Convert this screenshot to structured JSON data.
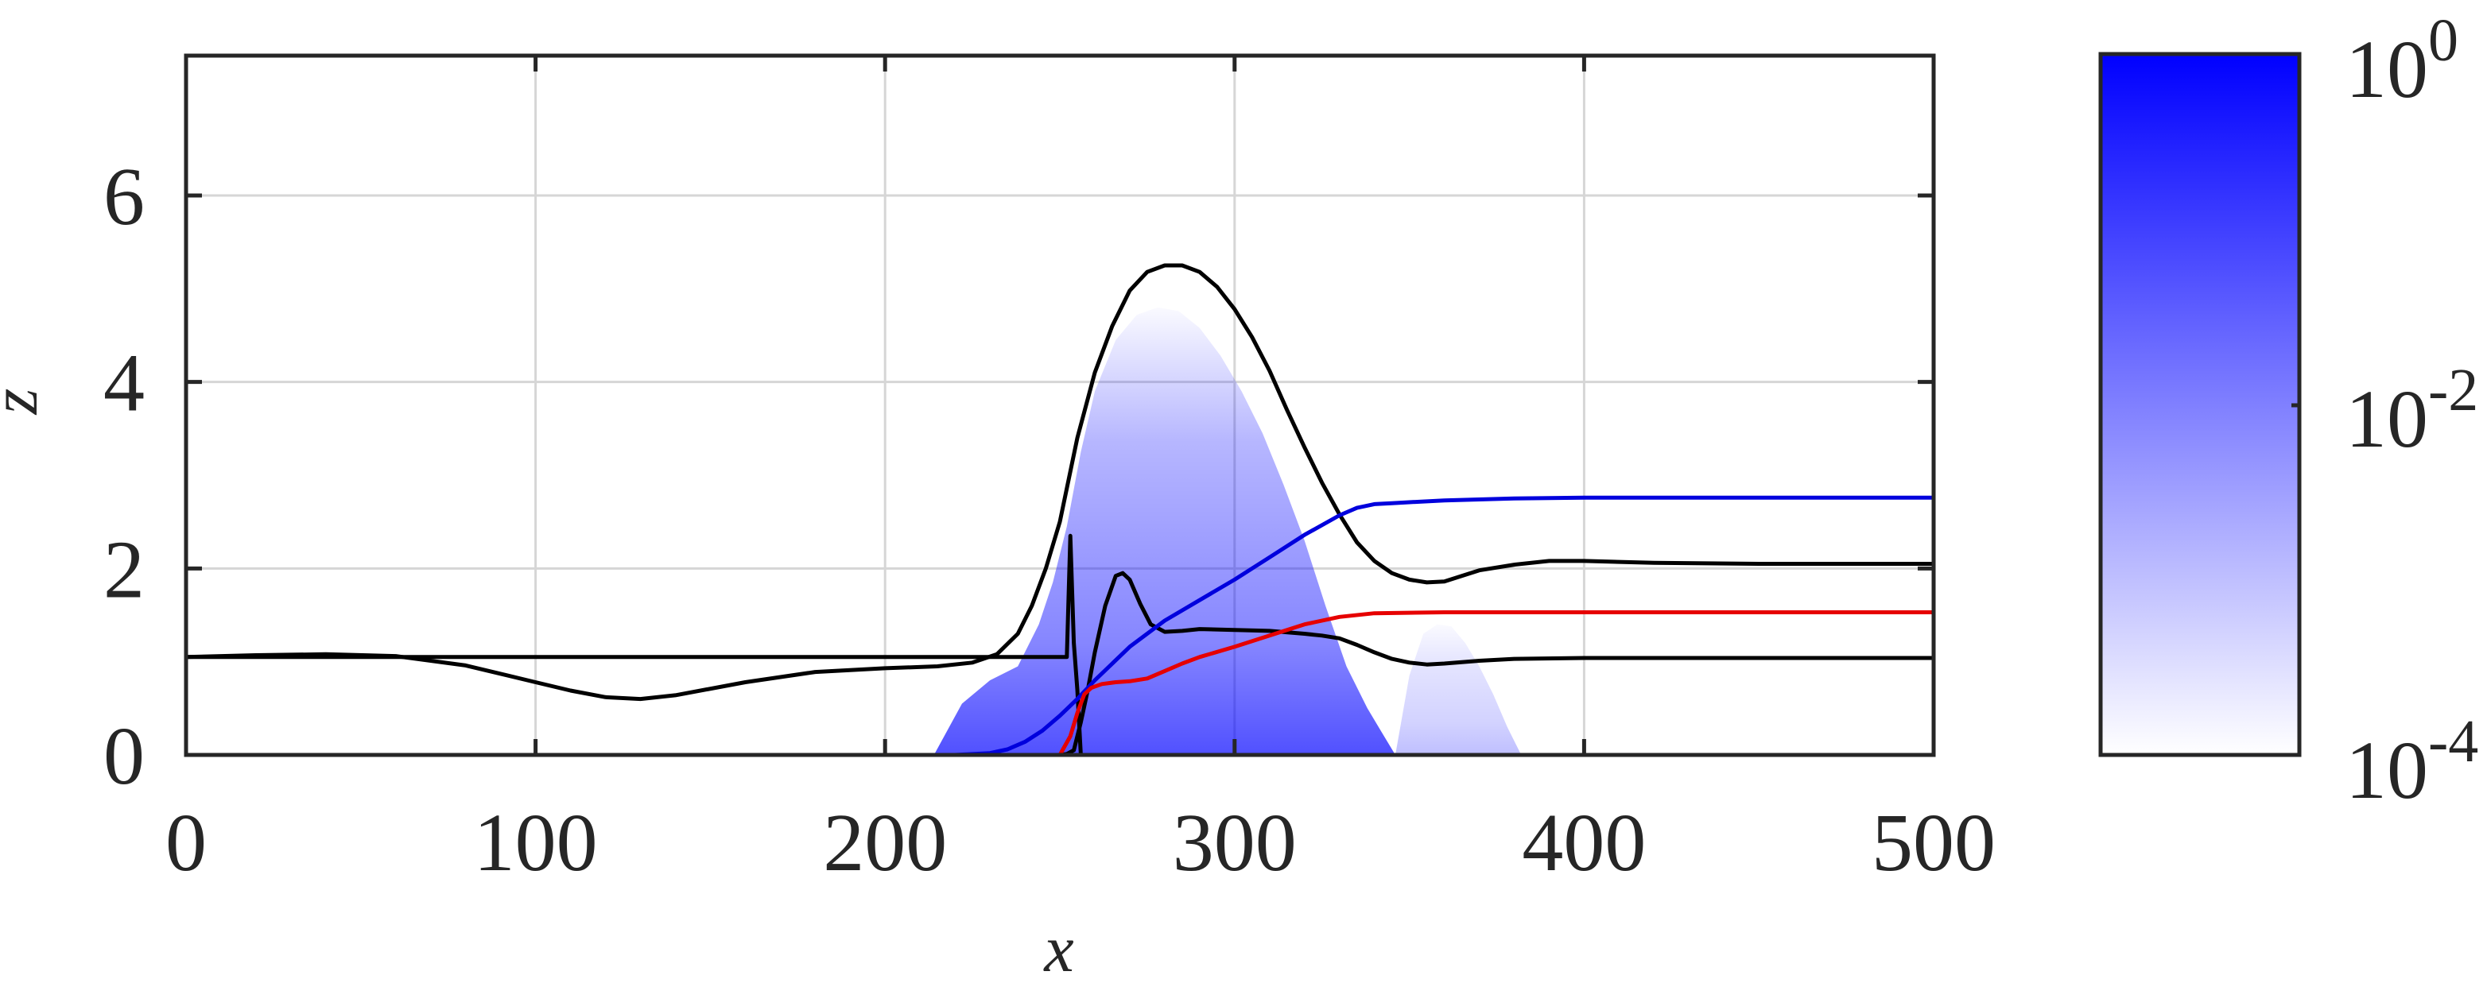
{
  "chart_data": {
    "type": "line",
    "title": "",
    "xlabel": "x",
    "ylabel": "z",
    "xlim": [
      0,
      500
    ],
    "ylim": [
      0,
      7.5
    ],
    "xticks": [
      "0",
      "100",
      "200",
      "300",
      "400",
      "500"
    ],
    "yticks": [
      "0",
      "2",
      "4",
      "6"
    ],
    "grid": true,
    "colors": {
      "upper_black": "#000000",
      "lower_black": "#000000",
      "blue": "#0000dd",
      "red": "#e60000",
      "field": "#0000ff",
      "grid": "#d6d6d6",
      "frame": "#262626"
    },
    "series": [
      {
        "key": "upper_black",
        "x": [
          0,
          20,
          40,
          60,
          80,
          100,
          110,
          120,
          130,
          140,
          160,
          180,
          200,
          215,
          225,
          232,
          238,
          242,
          246,
          250,
          255,
          260,
          265,
          270,
          275,
          280,
          285,
          290,
          295,
          300,
          305,
          310,
          315,
          320,
          325,
          330,
          335,
          340,
          345,
          350,
          355,
          360,
          365,
          370,
          380,
          390,
          400,
          420,
          450,
          480,
          500
        ],
        "y": [
          1.05,
          1.07,
          1.08,
          1.06,
          0.96,
          0.78,
          0.69,
          0.62,
          0.6,
          0.64,
          0.78,
          0.89,
          0.93,
          0.95,
          0.99,
          1.08,
          1.3,
          1.6,
          2.0,
          2.5,
          3.4,
          4.1,
          4.6,
          4.98,
          5.18,
          5.25,
          5.25,
          5.18,
          5.02,
          4.78,
          4.48,
          4.12,
          3.7,
          3.3,
          2.92,
          2.58,
          2.28,
          2.08,
          1.95,
          1.88,
          1.85,
          1.86,
          1.92,
          1.98,
          2.04,
          2.08,
          2.08,
          2.06,
          2.05,
          2.05,
          2.05
        ]
      },
      {
        "key": "lower_black",
        "x": [
          0,
          100,
          200,
          235,
          245,
          250,
          252,
          254,
          256,
          258,
          260,
          263,
          266,
          268,
          270,
          273,
          276,
          280,
          285,
          290,
          300,
          310,
          320,
          325,
          330,
          335,
          340,
          345,
          350,
          355,
          360,
          370,
          380,
          400,
          450,
          500
        ],
        "y": [
          0,
          0,
          0,
          0,
          0,
          0,
          0.01,
          0.05,
          0.35,
          0.7,
          1.1,
          1.6,
          1.92,
          1.95,
          1.88,
          1.62,
          1.4,
          1.32,
          1.33,
          1.35,
          1.34,
          1.33,
          1.3,
          1.28,
          1.25,
          1.18,
          1.1,
          1.03,
          0.99,
          0.97,
          0.98,
          1.01,
          1.03,
          1.04,
          1.04,
          1.04
        ]
      },
      {
        "key": "vertical_black",
        "x": [
          0,
          10,
          20,
          100,
          200,
          235,
          243,
          247,
          250,
          252,
          253,
          254,
          255,
          256,
          258
        ],
        "y": [
          1.05,
          1.05,
          1.05,
          1.05,
          1.05,
          1.05,
          1.05,
          1.05,
          1.05,
          1.05,
          2.35,
          1.2,
          0.7,
          0.0,
          0.0
        ]
      },
      {
        "key": "blue",
        "x": [
          0,
          100,
          200,
          220,
          230,
          235,
          240,
          245,
          250,
          255,
          260,
          270,
          280,
          290,
          300,
          310,
          320,
          330,
          335,
          340,
          345,
          350,
          360,
          380,
          400,
          450,
          500
        ],
        "y": [
          0,
          0,
          0,
          0,
          0.02,
          0.06,
          0.14,
          0.26,
          0.42,
          0.6,
          0.8,
          1.16,
          1.44,
          1.66,
          1.88,
          2.12,
          2.36,
          2.57,
          2.65,
          2.69,
          2.7,
          2.71,
          2.73,
          2.75,
          2.76,
          2.76,
          2.76
        ]
      },
      {
        "key": "red",
        "x": [
          0,
          200,
          250,
          253,
          255,
          257,
          259,
          262,
          266,
          270,
          275,
          280,
          285,
          290,
          300,
          310,
          320,
          330,
          340,
          360,
          380,
          400,
          450,
          500
        ],
        "y": [
          0,
          0,
          0,
          0.2,
          0.45,
          0.65,
          0.72,
          0.76,
          0.78,
          0.79,
          0.82,
          0.9,
          0.98,
          1.05,
          1.16,
          1.28,
          1.4,
          1.48,
          1.52,
          1.53,
          1.53,
          1.53,
          1.53,
          1.53
        ]
      }
    ],
    "field": {
      "envelopes": [
        {
          "x": [
            214,
            222,
            230,
            238,
            244,
            248,
            252,
            256,
            260,
            266,
            272,
            278,
            284,
            290,
            296,
            302,
            308,
            314,
            320,
            326,
            332,
            338,
            342,
            346
          ],
          "top": [
            0,
            0.55,
            0.8,
            0.95,
            1.4,
            1.85,
            2.45,
            3.25,
            3.9,
            4.45,
            4.72,
            4.8,
            4.76,
            4.58,
            4.28,
            3.9,
            3.45,
            2.9,
            2.3,
            1.6,
            0.95,
            0.5,
            0.25,
            0
          ],
          "peak": 0.95
        },
        {
          "x": [
            346,
            350,
            354,
            358,
            362,
            366,
            370,
            374,
            378,
            382
          ],
          "top": [
            0,
            0.85,
            1.3,
            1.4,
            1.38,
            1.2,
            0.95,
            0.65,
            0.3,
            0
          ],
          "peak": 0.35
        }
      ]
    },
    "colorbar": {
      "scale": "log",
      "range": [
        0.0001,
        1
      ],
      "tick_labels": [
        {
          "base": "10",
          "exp": "0"
        },
        {
          "base": "10",
          "exp": "-2"
        },
        {
          "base": "10",
          "exp": "-4"
        }
      ],
      "color_high": "#0000ff",
      "color_low": "#ffffff"
    }
  }
}
